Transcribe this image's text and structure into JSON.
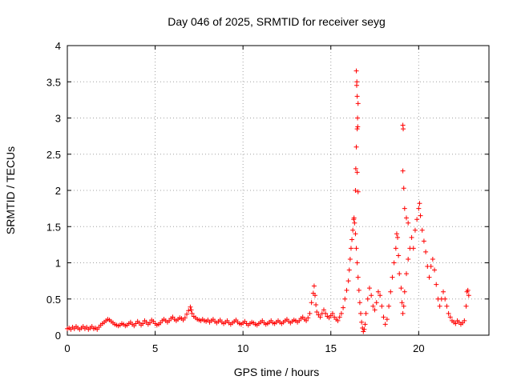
{
  "chart_data": {
    "type": "scatter",
    "title": "Day 046 of 2025, SRMTID for receiver seyg",
    "xlabel": "GPS time / hours",
    "ylabel": "SRMTID / TECUs",
    "xlim": [
      0,
      24
    ],
    "ylim": [
      0,
      4
    ],
    "xticks": [
      0,
      5,
      10,
      15,
      20
    ],
    "xtick_labels": [
      "0",
      "5",
      "10",
      "15",
      "20"
    ],
    "yticks": [
      0,
      0.5,
      1,
      1.5,
      2,
      2.5,
      3,
      3.5,
      4
    ],
    "ytick_labels": [
      "0",
      "0.5",
      "1",
      "1.5",
      "2",
      "2.5",
      "3",
      "3.5",
      "4"
    ],
    "grid": true,
    "marker": "+",
    "marker_color": "#ff0000",
    "series": [
      {
        "name": "SRMTID",
        "points": [
          [
            0.0,
            0.09
          ],
          [
            0.1,
            0.1
          ],
          [
            0.2,
            0.08
          ],
          [
            0.3,
            0.11
          ],
          [
            0.4,
            0.09
          ],
          [
            0.5,
            0.12
          ],
          [
            0.6,
            0.1
          ],
          [
            0.7,
            0.08
          ],
          [
            0.8,
            0.1
          ],
          [
            0.9,
            0.12
          ],
          [
            1.0,
            0.09
          ],
          [
            1.1,
            0.11
          ],
          [
            1.2,
            0.08
          ],
          [
            1.3,
            0.1
          ],
          [
            1.4,
            0.12
          ],
          [
            1.5,
            0.09
          ],
          [
            1.6,
            0.1
          ],
          [
            1.7,
            0.08
          ],
          [
            1.8,
            0.11
          ],
          [
            1.9,
            0.14
          ],
          [
            2.0,
            0.16
          ],
          [
            2.1,
            0.18
          ],
          [
            2.2,
            0.2
          ],
          [
            2.3,
            0.22
          ],
          [
            2.4,
            0.21
          ],
          [
            2.5,
            0.19
          ],
          [
            2.6,
            0.17
          ],
          [
            2.7,
            0.15
          ],
          [
            2.8,
            0.14
          ],
          [
            2.9,
            0.13
          ],
          [
            3.0,
            0.14
          ],
          [
            3.1,
            0.16
          ],
          [
            3.2,
            0.15
          ],
          [
            3.3,
            0.13
          ],
          [
            3.4,
            0.14
          ],
          [
            3.5,
            0.16
          ],
          [
            3.6,
            0.18
          ],
          [
            3.7,
            0.15
          ],
          [
            3.8,
            0.13
          ],
          [
            3.9,
            0.16
          ],
          [
            4.0,
            0.19
          ],
          [
            4.1,
            0.17
          ],
          [
            4.2,
            0.14
          ],
          [
            4.3,
            0.16
          ],
          [
            4.4,
            0.2
          ],
          [
            4.5,
            0.18
          ],
          [
            4.6,
            0.15
          ],
          [
            4.7,
            0.17
          ],
          [
            4.8,
            0.21
          ],
          [
            4.9,
            0.19
          ],
          [
            5.0,
            0.16
          ],
          [
            5.1,
            0.14
          ],
          [
            5.2,
            0.15
          ],
          [
            5.3,
            0.17
          ],
          [
            5.4,
            0.2
          ],
          [
            5.5,
            0.22
          ],
          [
            5.6,
            0.2
          ],
          [
            5.7,
            0.18
          ],
          [
            5.8,
            0.2
          ],
          [
            5.9,
            0.23
          ],
          [
            6.0,
            0.25
          ],
          [
            6.1,
            0.22
          ],
          [
            6.2,
            0.2
          ],
          [
            6.3,
            0.22
          ],
          [
            6.4,
            0.24
          ],
          [
            6.5,
            0.23
          ],
          [
            6.6,
            0.21
          ],
          [
            6.7,
            0.24
          ],
          [
            6.8,
            0.29
          ],
          [
            6.9,
            0.34
          ],
          [
            7.0,
            0.39
          ],
          [
            7.05,
            0.35
          ],
          [
            7.1,
            0.3
          ],
          [
            7.2,
            0.26
          ],
          [
            7.3,
            0.24
          ],
          [
            7.4,
            0.22
          ],
          [
            7.5,
            0.21
          ],
          [
            7.6,
            0.2
          ],
          [
            7.7,
            0.22
          ],
          [
            7.8,
            0.2
          ],
          [
            7.9,
            0.19
          ],
          [
            8.0,
            0.21
          ],
          [
            8.1,
            0.18
          ],
          [
            8.2,
            0.2
          ],
          [
            8.3,
            0.22
          ],
          [
            8.4,
            0.19
          ],
          [
            8.5,
            0.17
          ],
          [
            8.6,
            0.19
          ],
          [
            8.7,
            0.21
          ],
          [
            8.8,
            0.18
          ],
          [
            8.9,
            0.16
          ],
          [
            9.0,
            0.18
          ],
          [
            9.1,
            0.2
          ],
          [
            9.2,
            0.17
          ],
          [
            9.3,
            0.15
          ],
          [
            9.4,
            0.17
          ],
          [
            9.5,
            0.19
          ],
          [
            9.6,
            0.21
          ],
          [
            9.7,
            0.18
          ],
          [
            9.8,
            0.16
          ],
          [
            9.9,
            0.15
          ],
          [
            10.0,
            0.17
          ],
          [
            10.1,
            0.19
          ],
          [
            10.2,
            0.16
          ],
          [
            10.3,
            0.14
          ],
          [
            10.4,
            0.16
          ],
          [
            10.5,
            0.18
          ],
          [
            10.6,
            0.17
          ],
          [
            10.7,
            0.15
          ],
          [
            10.8,
            0.14
          ],
          [
            10.9,
            0.16
          ],
          [
            11.0,
            0.18
          ],
          [
            11.1,
            0.2
          ],
          [
            11.2,
            0.17
          ],
          [
            11.3,
            0.15
          ],
          [
            11.4,
            0.16
          ],
          [
            11.5,
            0.18
          ],
          [
            11.6,
            0.2
          ],
          [
            11.7,
            0.17
          ],
          [
            11.8,
            0.16
          ],
          [
            11.9,
            0.18
          ],
          [
            12.0,
            0.2
          ],
          [
            12.1,
            0.18
          ],
          [
            12.2,
            0.16
          ],
          [
            12.3,
            0.18
          ],
          [
            12.4,
            0.2
          ],
          [
            12.5,
            0.22
          ],
          [
            12.6,
            0.19
          ],
          [
            12.7,
            0.17
          ],
          [
            12.8,
            0.19
          ],
          [
            12.9,
            0.21
          ],
          [
            13.0,
            0.2
          ],
          [
            13.1,
            0.18
          ],
          [
            13.2,
            0.2
          ],
          [
            13.3,
            0.23
          ],
          [
            13.4,
            0.25
          ],
          [
            13.5,
            0.22
          ],
          [
            13.6,
            0.2
          ],
          [
            13.7,
            0.24
          ],
          [
            13.8,
            0.3
          ],
          [
            13.9,
            0.45
          ],
          [
            14.0,
            0.58
          ],
          [
            14.05,
            0.68
          ],
          [
            14.1,
            0.55
          ],
          [
            14.15,
            0.42
          ],
          [
            14.2,
            0.32
          ],
          [
            14.3,
            0.28
          ],
          [
            14.4,
            0.25
          ],
          [
            14.5,
            0.3
          ],
          [
            14.6,
            0.35
          ],
          [
            14.7,
            0.3
          ],
          [
            14.8,
            0.26
          ],
          [
            14.9,
            0.24
          ],
          [
            15.0,
            0.27
          ],
          [
            15.1,
            0.3
          ],
          [
            15.2,
            0.25
          ],
          [
            15.3,
            0.22
          ],
          [
            15.4,
            0.2
          ],
          [
            15.5,
            0.25
          ],
          [
            15.6,
            0.3
          ],
          [
            15.7,
            0.38
          ],
          [
            15.8,
            0.5
          ],
          [
            15.9,
            0.62
          ],
          [
            16.0,
            0.75
          ],
          [
            16.05,
            0.9
          ],
          [
            16.1,
            1.05
          ],
          [
            16.15,
            1.2
          ],
          [
            16.2,
            1.32
          ],
          [
            16.25,
            1.45
          ],
          [
            16.3,
            1.6
          ],
          [
            16.32,
            1.62
          ],
          [
            16.35,
            1.55
          ],
          [
            16.4,
            1.4
          ],
          [
            16.45,
            1.2
          ],
          [
            16.5,
            1.0
          ],
          [
            16.55,
            0.8
          ],
          [
            16.6,
            0.62
          ],
          [
            16.65,
            0.45
          ],
          [
            16.7,
            0.3
          ],
          [
            16.75,
            0.18
          ],
          [
            16.8,
            0.1
          ],
          [
            16.85,
            0.05
          ],
          [
            16.9,
            0.08
          ],
          [
            16.95,
            0.15
          ],
          [
            17.0,
            0.3
          ],
          [
            17.1,
            0.5
          ],
          [
            17.2,
            0.65
          ],
          [
            17.3,
            0.55
          ],
          [
            17.4,
            0.4
          ],
          [
            17.5,
            0.35
          ],
          [
            17.6,
            0.45
          ],
          [
            17.7,
            0.6
          ],
          [
            17.8,
            0.55
          ],
          [
            17.9,
            0.4
          ],
          [
            18.0,
            0.25
          ],
          [
            18.1,
            0.15
          ],
          [
            18.2,
            0.22
          ],
          [
            18.3,
            0.4
          ],
          [
            18.4,
            0.6
          ],
          [
            18.5,
            0.8
          ],
          [
            18.6,
            1.0
          ],
          [
            18.7,
            1.2
          ],
          [
            18.75,
            1.4
          ],
          [
            18.8,
            1.35
          ],
          [
            18.85,
            1.1
          ],
          [
            18.9,
            0.85
          ],
          [
            19.0,
            0.65
          ],
          [
            19.05,
            0.45
          ],
          [
            19.1,
            0.3
          ],
          [
            19.15,
            0.4
          ],
          [
            19.2,
            0.6
          ],
          [
            19.3,
            0.85
          ],
          [
            19.4,
            1.05
          ],
          [
            19.5,
            1.2
          ],
          [
            19.6,
            1.35
          ],
          [
            19.7,
            1.2
          ],
          [
            19.8,
            1.45
          ],
          [
            19.9,
            1.6
          ],
          [
            20.0,
            1.75
          ],
          [
            20.05,
            1.82
          ],
          [
            20.1,
            1.65
          ],
          [
            20.2,
            1.45
          ],
          [
            20.3,
            1.3
          ],
          [
            20.4,
            1.15
          ],
          [
            20.5,
            0.95
          ],
          [
            20.6,
            0.8
          ],
          [
            20.7,
            0.95
          ],
          [
            20.8,
            1.05
          ],
          [
            20.9,
            0.9
          ],
          [
            21.0,
            0.7
          ],
          [
            21.1,
            0.5
          ],
          [
            21.2,
            0.4
          ],
          [
            21.3,
            0.5
          ],
          [
            21.4,
            0.6
          ],
          [
            21.5,
            0.5
          ],
          [
            21.6,
            0.4
          ],
          [
            21.7,
            0.3
          ],
          [
            21.8,
            0.25
          ],
          [
            21.9,
            0.2
          ],
          [
            22.0,
            0.18
          ],
          [
            22.1,
            0.16
          ],
          [
            22.2,
            0.2
          ],
          [
            22.3,
            0.18
          ],
          [
            22.4,
            0.15
          ],
          [
            22.5,
            0.17
          ],
          [
            22.6,
            0.2
          ],
          [
            22.7,
            0.4
          ],
          [
            22.75,
            0.6
          ],
          [
            22.8,
            0.62
          ],
          [
            22.85,
            0.55
          ],
          [
            16.4,
            2.0
          ],
          [
            16.42,
            2.3
          ],
          [
            16.45,
            2.6
          ],
          [
            16.5,
            2.85
          ],
          [
            16.52,
            3.0
          ],
          [
            16.55,
            3.2
          ],
          [
            16.5,
            3.3
          ],
          [
            16.47,
            3.45
          ],
          [
            16.45,
            3.65
          ],
          [
            16.48,
            3.5
          ],
          [
            16.5,
            2.25
          ],
          [
            16.55,
            1.98
          ],
          [
            16.53,
            2.88
          ],
          [
            19.1,
            2.9
          ],
          [
            19.12,
            2.85
          ],
          [
            19.1,
            2.27
          ],
          [
            19.15,
            2.03
          ],
          [
            19.2,
            1.75
          ],
          [
            19.3,
            1.62
          ],
          [
            19.4,
            1.55
          ]
        ]
      }
    ]
  }
}
